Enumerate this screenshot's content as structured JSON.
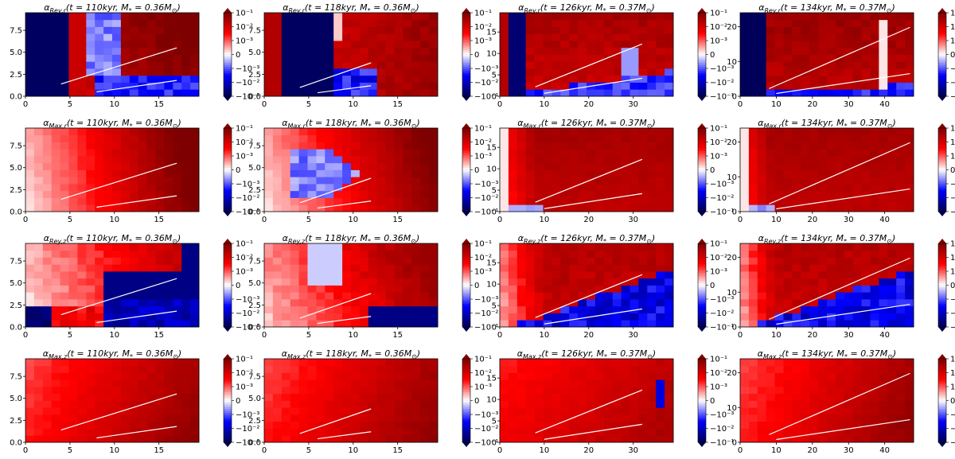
{
  "figure": {
    "colorbar_ticks": [
      "10⁻¹",
      "10⁻²",
      "10⁻³",
      "0",
      "−10⁻³",
      "−10⁻²",
      "−10⁻¹"
    ],
    "colors": {
      "negative": "#00004f",
      "zero": "#ffffff",
      "positive": "#7f0000"
    }
  },
  "chart_data": [
    {
      "type": "heatmap",
      "row": 0,
      "col": 0,
      "quantity": "Rey,r",
      "t": "110kyr",
      "mass": "0.36",
      "xlim": [
        0,
        19.5
      ],
      "ylim": [
        0,
        9.5
      ],
      "xticks": [
        0,
        5,
        10,
        15
      ],
      "yticks": [
        "0.0",
        "2.5",
        "5.0",
        "7.5"
      ],
      "lines": [
        [
          [
            4,
            1.4
          ],
          [
            17,
            5.5
          ]
        ],
        [
          [
            8,
            0.5
          ],
          [
            17,
            1.8
          ]
        ]
      ],
      "pattern": "rey_r_early",
      "seed": 11
    },
    {
      "type": "heatmap",
      "row": 0,
      "col": 1,
      "quantity": "Rey,r",
      "t": "118kyr",
      "mass": "0.36",
      "xlim": [
        0,
        19.5
      ],
      "ylim": [
        0,
        9.5
      ],
      "xticks": [
        0,
        5,
        10,
        15
      ],
      "yticks": [
        "0.0",
        "2.5",
        "5.0",
        "7.5"
      ],
      "lines": [
        [
          [
            4,
            1.0
          ],
          [
            12,
            3.8
          ]
        ],
        [
          [
            6,
            0.4
          ],
          [
            12,
            1.2
          ]
        ]
      ],
      "pattern": "rey_r_mid",
      "seed": 12
    },
    {
      "type": "heatmap",
      "row": 0,
      "col": 2,
      "quantity": "Rey,r",
      "t": "126kyr",
      "mass": "0.37",
      "xlim": [
        0,
        39
      ],
      "ylim": [
        0,
        19.5
      ],
      "xticks": [
        0,
        10,
        20,
        30
      ],
      "yticks": [
        "0",
        "5",
        "10",
        "15"
      ],
      "lines": [
        [
          [
            8,
            2.2
          ],
          [
            32,
            12.2
          ]
        ],
        [
          [
            10,
            0.7
          ],
          [
            32,
            4.2
          ]
        ]
      ],
      "pattern": "rey_r_late",
      "seed": 13
    },
    {
      "type": "heatmap",
      "row": 0,
      "col": 3,
      "quantity": "Rey,r",
      "t": "134kyr",
      "mass": "0.37",
      "xlim": [
        0,
        48
      ],
      "ylim": [
        0,
        24
      ],
      "xticks": [
        0,
        10,
        20,
        30,
        40
      ],
      "yticks": [
        "0",
        "10",
        "20"
      ],
      "lines": [
        [
          [
            8,
            2.2
          ],
          [
            47,
            19.8
          ]
        ],
        [
          [
            10,
            0.8
          ],
          [
            47,
            6.5
          ]
        ]
      ],
      "pattern": "rey_r_latest",
      "seed": 14
    },
    {
      "type": "heatmap",
      "row": 1,
      "col": 0,
      "quantity": "Max,r",
      "t": "110kyr",
      "mass": "0.36",
      "xlim": [
        0,
        19.5
      ],
      "ylim": [
        0,
        9.5
      ],
      "xticks": [
        0,
        5,
        10,
        15
      ],
      "yticks": [
        "0.0",
        "2.5",
        "5.0",
        "7.5"
      ],
      "lines": [
        [
          [
            4,
            1.4
          ],
          [
            17,
            5.5
          ]
        ],
        [
          [
            8,
            0.5
          ],
          [
            17,
            1.8
          ]
        ]
      ],
      "pattern": "max_r_early",
      "seed": 21
    },
    {
      "type": "heatmap",
      "row": 1,
      "col": 1,
      "quantity": "Max,r",
      "t": "118kyr",
      "mass": "0.36",
      "xlim": [
        0,
        19.5
      ],
      "ylim": [
        0,
        9.5
      ],
      "xticks": [
        0,
        5,
        10,
        15
      ],
      "yticks": [
        "0.0",
        "2.5",
        "5.0",
        "7.5"
      ],
      "lines": [
        [
          [
            4,
            1.0
          ],
          [
            12,
            3.8
          ]
        ],
        [
          [
            6,
            0.4
          ],
          [
            12,
            1.2
          ]
        ]
      ],
      "pattern": "max_r_mid",
      "seed": 22
    },
    {
      "type": "heatmap",
      "row": 1,
      "col": 2,
      "quantity": "Max,r",
      "t": "126kyr",
      "mass": "0.37",
      "xlim": [
        0,
        39
      ],
      "ylim": [
        0,
        19.5
      ],
      "xticks": [
        0,
        10,
        20,
        30
      ],
      "yticks": [
        "0",
        "5",
        "10",
        "15"
      ],
      "lines": [
        [
          [
            8,
            2.2
          ],
          [
            32,
            12.2
          ]
        ],
        [
          [
            10,
            0.7
          ],
          [
            32,
            4.2
          ]
        ]
      ],
      "pattern": "max_r_late",
      "seed": 23
    },
    {
      "type": "heatmap",
      "row": 1,
      "col": 3,
      "quantity": "Max,r",
      "t": "134kyr",
      "mass": "0.37",
      "xlim": [
        0,
        48
      ],
      "ylim": [
        0,
        24
      ],
      "xticks": [
        0,
        10,
        20,
        30,
        40
      ],
      "yticks": [
        "0",
        "10",
        "20"
      ],
      "lines": [
        [
          [
            8,
            2.2
          ],
          [
            47,
            19.8
          ]
        ],
        [
          [
            10,
            0.8
          ],
          [
            47,
            6.5
          ]
        ]
      ],
      "pattern": "max_r_late",
      "seed": 24
    },
    {
      "type": "heatmap",
      "row": 2,
      "col": 0,
      "quantity": "Rey,z",
      "t": "110kyr",
      "mass": "0.36",
      "xlim": [
        0,
        19.5
      ],
      "ylim": [
        0,
        9.5
      ],
      "xticks": [
        0,
        5,
        10,
        15
      ],
      "yticks": [
        "0.0",
        "2.5",
        "5.0",
        "7.5"
      ],
      "lines": [
        [
          [
            4,
            1.4
          ],
          [
            17,
            5.5
          ]
        ],
        [
          [
            8,
            0.5
          ],
          [
            17,
            1.8
          ]
        ]
      ],
      "pattern": "rey_z_early",
      "seed": 31
    },
    {
      "type": "heatmap",
      "row": 2,
      "col": 1,
      "quantity": "Rey,z",
      "t": "118kyr",
      "mass": "0.36",
      "xlim": [
        0,
        19.5
      ],
      "ylim": [
        0,
        9.5
      ],
      "xticks": [
        0,
        5,
        10,
        15
      ],
      "yticks": [
        "0.0",
        "2.5",
        "5.0",
        "7.5"
      ],
      "lines": [
        [
          [
            4,
            1.0
          ],
          [
            12,
            3.8
          ]
        ],
        [
          [
            6,
            0.4
          ],
          [
            12,
            1.2
          ]
        ]
      ],
      "pattern": "rey_z_mid",
      "seed": 32
    },
    {
      "type": "heatmap",
      "row": 2,
      "col": 2,
      "quantity": "Rey,z",
      "t": "126kyr",
      "mass": "0.37",
      "xlim": [
        0,
        39
      ],
      "ylim": [
        0,
        19.5
      ],
      "xticks": [
        0,
        10,
        20,
        30
      ],
      "yticks": [
        "0",
        "5",
        "10",
        "15"
      ],
      "lines": [
        [
          [
            8,
            2.2
          ],
          [
            32,
            12.2
          ]
        ],
        [
          [
            10,
            0.7
          ],
          [
            32,
            4.2
          ]
        ]
      ],
      "pattern": "rey_z_late",
      "seed": 33
    },
    {
      "type": "heatmap",
      "row": 2,
      "col": 3,
      "quantity": "Rey,z",
      "t": "134kyr",
      "mass": "0.37",
      "xlim": [
        0,
        48
      ],
      "ylim": [
        0,
        24
      ],
      "xticks": [
        0,
        10,
        20,
        30,
        40
      ],
      "yticks": [
        "0",
        "10",
        "20"
      ],
      "lines": [
        [
          [
            8,
            2.2
          ],
          [
            47,
            19.8
          ]
        ],
        [
          [
            10,
            0.8
          ],
          [
            47,
            6.5
          ]
        ]
      ],
      "pattern": "rey_z_late",
      "seed": 34
    },
    {
      "type": "heatmap",
      "row": 3,
      "col": 0,
      "quantity": "Max,z",
      "t": "110kyr",
      "mass": "0.36",
      "xlim": [
        0,
        19.5
      ],
      "ylim": [
        0,
        9.5
      ],
      "xticks": [
        0,
        5,
        10,
        15
      ],
      "yticks": [
        "0.0",
        "2.5",
        "5.0",
        "7.5"
      ],
      "lines": [
        [
          [
            4,
            1.4
          ],
          [
            17,
            5.5
          ]
        ],
        [
          [
            8,
            0.5
          ],
          [
            17,
            1.8
          ]
        ]
      ],
      "pattern": "max_z",
      "seed": 41
    },
    {
      "type": "heatmap",
      "row": 3,
      "col": 1,
      "quantity": "Max,z",
      "t": "118kyr",
      "mass": "0.36",
      "xlim": [
        0,
        19.5
      ],
      "ylim": [
        0,
        9.5
      ],
      "xticks": [
        0,
        5,
        10,
        15
      ],
      "yticks": [
        "0.0",
        "2.5",
        "5.0",
        "7.5"
      ],
      "lines": [
        [
          [
            4,
            1.0
          ],
          [
            12,
            3.8
          ]
        ],
        [
          [
            6,
            0.4
          ],
          [
            12,
            1.2
          ]
        ]
      ],
      "pattern": "max_z",
      "seed": 42
    },
    {
      "type": "heatmap",
      "row": 3,
      "col": 2,
      "quantity": "Max,z",
      "t": "126kyr",
      "mass": "0.37",
      "xlim": [
        0,
        39
      ],
      "ylim": [
        0,
        19.5
      ],
      "xticks": [
        0,
        10,
        20,
        30
      ],
      "yticks": [
        "0",
        "5",
        "10",
        "15"
      ],
      "lines": [
        [
          [
            8,
            2.2
          ],
          [
            32,
            12.2
          ]
        ],
        [
          [
            10,
            0.7
          ],
          [
            32,
            4.2
          ]
        ]
      ],
      "pattern": "max_z_blue",
      "seed": 43
    },
    {
      "type": "heatmap",
      "row": 3,
      "col": 3,
      "quantity": "Max,z",
      "t": "134kyr",
      "mass": "0.37",
      "xlim": [
        0,
        48
      ],
      "ylim": [
        0,
        24
      ],
      "xticks": [
        0,
        10,
        20,
        30,
        40
      ],
      "yticks": [
        "0",
        "10",
        "20"
      ],
      "lines": [
        [
          [
            8,
            2.2
          ],
          [
            47,
            19.8
          ]
        ],
        [
          [
            10,
            0.8
          ],
          [
            47,
            6.5
          ]
        ]
      ],
      "pattern": "max_z",
      "seed": 44
    }
  ]
}
